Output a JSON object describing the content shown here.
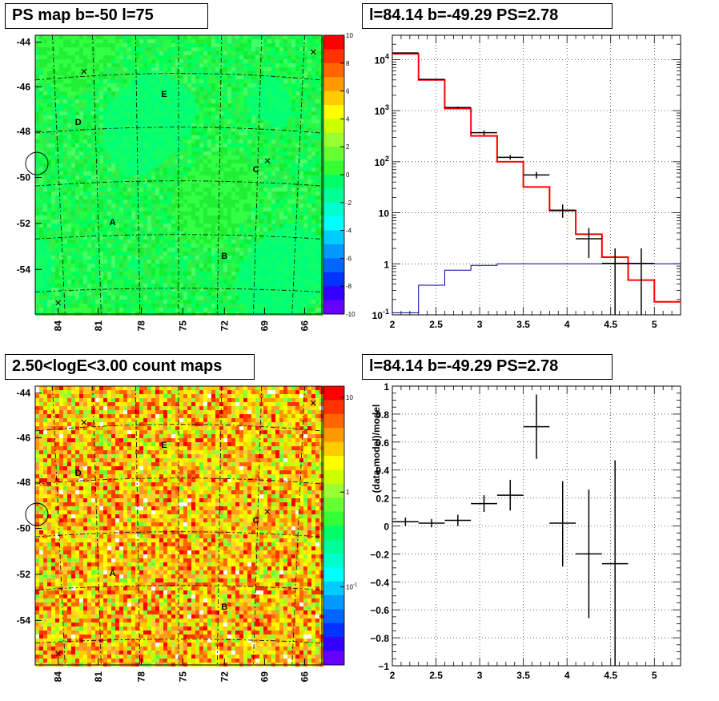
{
  "titles": {
    "tl": "PS map b=-50 l=75",
    "tr": "l=84.14 b=-49.29 PS=2.78",
    "bl": "2.50<logE<3.00 count maps",
    "br": "l=84.14 b=-49.29 PS=2.78"
  },
  "chart_data": [
    {
      "id": "ps-map",
      "type": "heatmap",
      "title": "PS map b=-50 l=75",
      "xlabel": "",
      "ylabel": "",
      "x_ticks": [
        "84",
        "81",
        "78",
        "75",
        "72",
        "69",
        "66"
      ],
      "y_ticks": [
        "-44",
        "-46",
        "-48",
        "-50",
        "-52",
        "-54"
      ],
      "colorbar_ticks": [
        "10",
        "8",
        "6",
        "4",
        "2",
        "0",
        "-2",
        "-4",
        "-6",
        "-8",
        "-10"
      ],
      "zlim": [
        -10,
        10
      ],
      "sources": [
        "A",
        "B",
        "C",
        "D",
        "E"
      ]
    },
    {
      "id": "spectrum",
      "type": "line",
      "title": "l=84.14 b=-49.29 PS=2.78",
      "xlabel": "",
      "ylabel": "",
      "xlim": [
        2,
        5.3
      ],
      "ylim": [
        0.1,
        30000
      ],
      "yscale": "log",
      "grid": true,
      "x_ticks": [
        "2",
        "2.5",
        "3",
        "3.5",
        "4",
        "4.5",
        "5"
      ],
      "y_ticks": [
        "10^-1",
        "1",
        "10",
        "10^2",
        "10^3",
        "10^4"
      ],
      "model_steps": {
        "edges": [
          2.0,
          2.3,
          2.6,
          2.9,
          3.2,
          3.5,
          3.8,
          4.1,
          4.4,
          4.7,
          5.0,
          5.3
        ],
        "values": [
          13000,
          4000,
          1100,
          320,
          100,
          32,
          11,
          3.8,
          1.35,
          0.48,
          0.18
        ]
      },
      "background_steps": {
        "edges": [
          2.0,
          2.3,
          2.6,
          2.9,
          3.2,
          5.3
        ],
        "values": [
          0.11,
          0.38,
          0.75,
          0.93,
          1.0
        ]
      },
      "data_points": [
        {
          "x": 2.15,
          "y": 13500,
          "ylo": 13300,
          "yhi": 13700
        },
        {
          "x": 2.45,
          "y": 4100,
          "ylo": 4000,
          "yhi": 4200
        },
        {
          "x": 2.75,
          "y": 1150,
          "ylo": 1100,
          "yhi": 1200
        },
        {
          "x": 3.05,
          "y": 370,
          "ylo": 330,
          "yhi": 410
        },
        {
          "x": 3.35,
          "y": 122,
          "ylo": 110,
          "yhi": 135
        },
        {
          "x": 3.65,
          "y": 55,
          "ylo": 47,
          "yhi": 63
        },
        {
          "x": 3.95,
          "y": 11.2,
          "ylo": 8,
          "yhi": 14.5
        },
        {
          "x": 4.25,
          "y": 3.1,
          "ylo": 1.3,
          "yhi": 5
        },
        {
          "x": 4.55,
          "y": 1.02,
          "ylo": 0.1,
          "yhi": 2
        },
        {
          "x": 4.85,
          "y": 1.02,
          "ylo": 0.1,
          "yhi": 2
        }
      ]
    },
    {
      "id": "count-map",
      "type": "heatmap",
      "title": "2.50<logE<3.00 count maps",
      "xlabel": "",
      "ylabel": "",
      "x_ticks": [
        "84",
        "81",
        "78",
        "75",
        "72",
        "69",
        "66"
      ],
      "y_ticks": [
        "-44",
        "-46",
        "-48",
        "-50",
        "-52",
        "-54"
      ],
      "colorbar_ticks": [
        "10",
        "1",
        "10^-1"
      ],
      "zscale": "log",
      "sources": [
        "A",
        "B",
        "C",
        "D",
        "E"
      ]
    },
    {
      "id": "residuals",
      "type": "scatter",
      "title": "l=84.14 b=-49.29 PS=2.78",
      "xlabel": "",
      "ylabel": "(data-model)/model",
      "xlim": [
        2,
        5.3
      ],
      "ylim": [
        -1,
        1
      ],
      "grid": true,
      "x_ticks": [
        "2",
        "2.5",
        "3",
        "3.5",
        "4",
        "4.5",
        "5"
      ],
      "y_ticks": [
        "1",
        "0.8",
        "0.6",
        "0.4",
        "0.2",
        "0",
        "-0.2",
        "-0.4",
        "-0.6",
        "-0.8",
        "-1"
      ],
      "data_points": [
        {
          "x": 2.15,
          "y": 0.03,
          "ylo": 0.0,
          "yhi": 0.06
        },
        {
          "x": 2.45,
          "y": 0.02,
          "ylo": -0.01,
          "yhi": 0.05
        },
        {
          "x": 2.75,
          "y": 0.04,
          "ylo": 0.0,
          "yhi": 0.08
        },
        {
          "x": 3.05,
          "y": 0.16,
          "ylo": 0.1,
          "yhi": 0.22
        },
        {
          "x": 3.35,
          "y": 0.22,
          "ylo": 0.11,
          "yhi": 0.33
        },
        {
          "x": 3.65,
          "y": 0.71,
          "ylo": 0.48,
          "yhi": 0.94
        },
        {
          "x": 3.95,
          "y": 0.02,
          "ylo": -0.29,
          "yhi": 0.32
        },
        {
          "x": 4.25,
          "y": -0.2,
          "ylo": -0.66,
          "yhi": 0.26
        },
        {
          "x": 4.55,
          "y": -0.27,
          "ylo": -1.0,
          "yhi": 0.47
        }
      ]
    }
  ]
}
